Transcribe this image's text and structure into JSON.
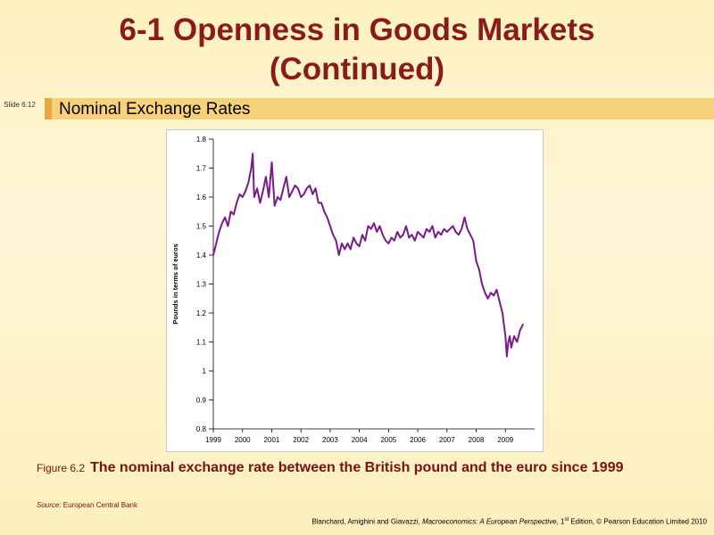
{
  "slide": {
    "title_line1": "6-1  Openness in Goods Markets",
    "title_line2": "(Continued)",
    "slide_label": "Slide 6.12",
    "subtitle": "Nominal Exchange Rates"
  },
  "caption": {
    "figure_label": "Figure 6.2",
    "text": "The nominal exchange rate between the British pound and the euro since 1999",
    "source_label": "Source",
    "source_text": ": European Central Bank"
  },
  "credit": {
    "authors": "Blanchard, Amighini and Giavazzi, ",
    "book": "Macroeconomics: A European Perspective",
    "edition_num": ", 1",
    "edition_sup": "st",
    "rest": " Edition, © Pearson Education Limited 2010"
  },
  "colors": {
    "line": "#7b1a8a",
    "title": "#8b1a1a"
  },
  "chart_data": {
    "type": "line",
    "title": "",
    "xlabel": "",
    "ylabel": "Pounds in terms of euros",
    "xlim": [
      1999.0,
      2010.0
    ],
    "ylim": [
      0.8,
      1.8
    ],
    "y_ticks": [
      0.8,
      0.9,
      1.0,
      1.1,
      1.2,
      1.3,
      1.4,
      1.5,
      1.6,
      1.7,
      1.8
    ],
    "y_tick_labels": [
      "0.8",
      "0.9",
      "1",
      "1.1",
      "1.2",
      "1.3",
      "1.4",
      "1.5",
      "1.6",
      "1.7",
      "1.8"
    ],
    "x_tick_labels": [
      "1999",
      "2000",
      "2001",
      "2002",
      "2003",
      "2004",
      "2005",
      "2006",
      "2007",
      "2008",
      "2009"
    ],
    "grid": false,
    "series": [
      {
        "x": [
          1999.0,
          1999.1,
          1999.2,
          1999.3,
          1999.4,
          1999.5,
          1999.6,
          1999.7,
          1999.8,
          1999.9,
          2000.0,
          2000.1,
          2000.2,
          2000.3,
          2000.35,
          2000.4,
          2000.5,
          2000.6,
          2000.7,
          2000.8,
          2000.9,
          2001.0,
          2001.1,
          2001.2,
          2001.3,
          2001.4,
          2001.5,
          2001.6,
          2001.7,
          2001.8,
          2001.9,
          2002.0,
          2002.1,
          2002.2,
          2002.3,
          2002.4,
          2002.5,
          2002.6,
          2002.7,
          2002.8,
          2002.9,
          2003.0,
          2003.1,
          2003.2,
          2003.3,
          2003.4,
          2003.5,
          2003.6,
          2003.7,
          2003.8,
          2003.9,
          2004.0,
          2004.1,
          2004.2,
          2004.3,
          2004.4,
          2004.5,
          2004.6,
          2004.7,
          2004.8,
          2004.9,
          2005.0,
          2005.1,
          2005.2,
          2005.3,
          2005.4,
          2005.5,
          2005.6,
          2005.7,
          2005.8,
          2005.9,
          2006.0,
          2006.1,
          2006.2,
          2006.3,
          2006.4,
          2006.5,
          2006.6,
          2006.7,
          2006.8,
          2006.9,
          2007.0,
          2007.1,
          2007.2,
          2007.3,
          2007.4,
          2007.5,
          2007.6,
          2007.7,
          2007.8,
          2007.9,
          2008.0,
          2008.1,
          2008.2,
          2008.3,
          2008.4,
          2008.5,
          2008.6,
          2008.7,
          2008.8,
          2008.9,
          2009.0,
          2009.05,
          2009.1,
          2009.15,
          2009.2,
          2009.3,
          2009.4,
          2009.5,
          2009.6
        ],
        "y": [
          1.4,
          1.44,
          1.48,
          1.51,
          1.53,
          1.5,
          1.55,
          1.54,
          1.58,
          1.61,
          1.6,
          1.62,
          1.65,
          1.7,
          1.75,
          1.6,
          1.63,
          1.58,
          1.62,
          1.67,
          1.6,
          1.72,
          1.57,
          1.6,
          1.59,
          1.63,
          1.67,
          1.6,
          1.62,
          1.64,
          1.63,
          1.6,
          1.61,
          1.63,
          1.64,
          1.61,
          1.63,
          1.58,
          1.58,
          1.55,
          1.53,
          1.5,
          1.47,
          1.45,
          1.4,
          1.44,
          1.42,
          1.44,
          1.42,
          1.46,
          1.44,
          1.43,
          1.47,
          1.45,
          1.5,
          1.49,
          1.51,
          1.48,
          1.5,
          1.47,
          1.45,
          1.44,
          1.46,
          1.45,
          1.48,
          1.46,
          1.47,
          1.5,
          1.46,
          1.47,
          1.45,
          1.48,
          1.47,
          1.46,
          1.49,
          1.48,
          1.5,
          1.46,
          1.48,
          1.47,
          1.49,
          1.48,
          1.49,
          1.5,
          1.48,
          1.47,
          1.49,
          1.53,
          1.49,
          1.47,
          1.45,
          1.38,
          1.35,
          1.3,
          1.27,
          1.25,
          1.27,
          1.26,
          1.28,
          1.24,
          1.2,
          1.12,
          1.05,
          1.1,
          1.12,
          1.08,
          1.12,
          1.1,
          1.14,
          1.16
        ]
      }
    ]
  }
}
